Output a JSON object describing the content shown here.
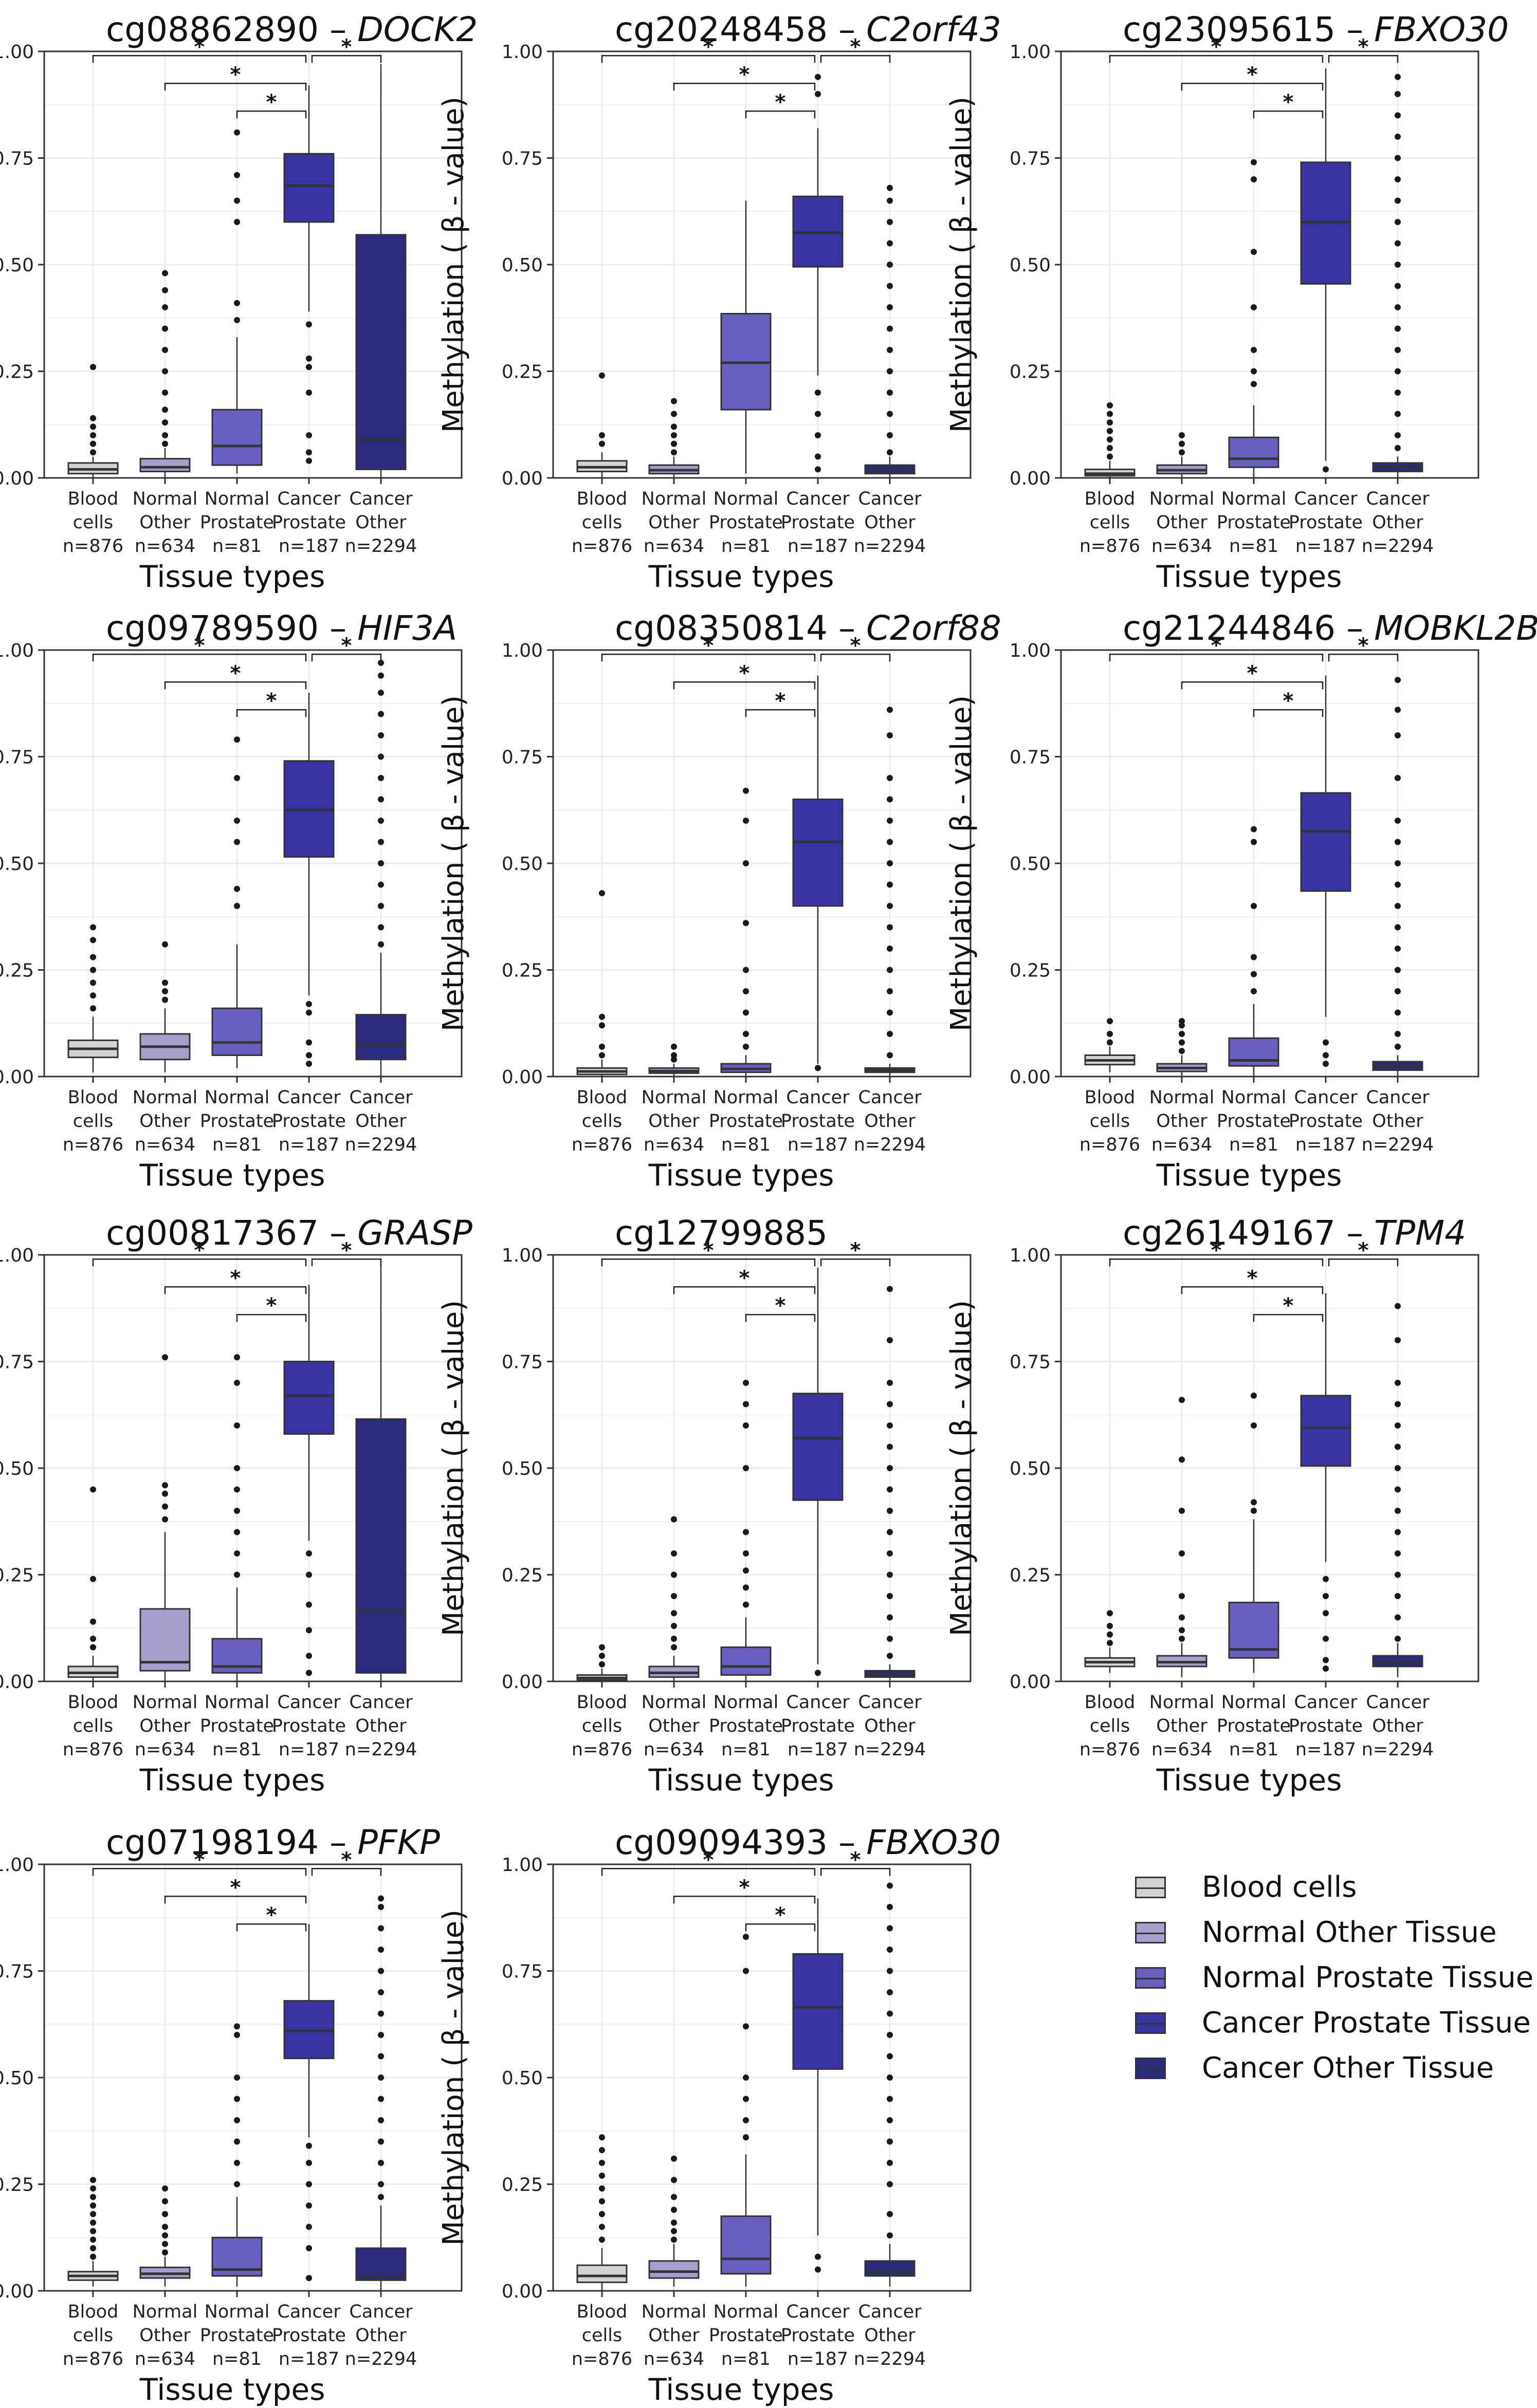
{
  "figure": {
    "ylabel": "Methylation ( β - value)",
    "xlabel": "Tissue types",
    "ylim": [
      0,
      1
    ],
    "yticks": [
      "0.00",
      "0.25",
      "0.50",
      "0.75",
      "1.00"
    ],
    "significance_marker": "*"
  },
  "groups": [
    {
      "label": "Blood cells",
      "line1": "Blood",
      "line2": "cells",
      "n": "n=876",
      "color": "#d3d3d3"
    },
    {
      "label": "Normal Other Tissue",
      "line1": "Normal",
      "line2": "Other",
      "n": "n=634",
      "color": "#a39ecb"
    },
    {
      "label": "Normal Prostate Tissue",
      "line1": "Normal",
      "line2": "Prostate",
      "n": "n=81",
      "color": "#6a5fbf"
    },
    {
      "label": "Cancer Prostate Tissue",
      "line1": "Cancer",
      "line2": "Prostate",
      "n": "n=187",
      "color": "#3a33a5"
    },
    {
      "label": "Cancer Other Tissue",
      "line1": "Cancer",
      "line2": "Other",
      "n": "n=2294",
      "color": "#2b2a7f"
    }
  ],
  "legend": {
    "items": [
      "Blood cells",
      "Normal Other Tissue",
      "Normal Prostate Tissue",
      "Cancer Prostate Tissue",
      "Cancer Other Tissue"
    ]
  },
  "chart_data": [
    {
      "type": "box",
      "title": "cg08862890",
      "gene": "DOCK2",
      "boxes": [
        {
          "min": 0,
          "q1": 0.01,
          "median": 0.02,
          "q3": 0.035,
          "max": 0.05,
          "outliers": [
            0.06,
            0.08,
            0.1,
            0.12,
            0.14,
            0.26
          ]
        },
        {
          "min": 0,
          "q1": 0.015,
          "median": 0.025,
          "q3": 0.045,
          "max": 0.07,
          "outliers": [
            0.08,
            0.1,
            0.13,
            0.16,
            0.2,
            0.25,
            0.3,
            0.35,
            0.4,
            0.44,
            0.48
          ]
        },
        {
          "min": 0.01,
          "q1": 0.03,
          "median": 0.075,
          "q3": 0.16,
          "max": 0.33,
          "outliers": [
            0.37,
            0.41,
            0.6,
            0.65,
            0.71,
            0.81
          ]
        },
        {
          "min": 0.39,
          "q1": 0.6,
          "median": 0.685,
          "q3": 0.76,
          "max": 0.92,
          "outliers": [
            0.36,
            0.28,
            0.26,
            0.2,
            0.1,
            0.06,
            0.04
          ]
        },
        {
          "min": 0,
          "q1": 0.02,
          "median": 0.09,
          "q3": 0.57,
          "max": 0.97,
          "outliers": []
        }
      ]
    },
    {
      "type": "box",
      "title": "cg20248458",
      "gene": "C2orf43",
      "boxes": [
        {
          "min": 0,
          "q1": 0.015,
          "median": 0.025,
          "q3": 0.04,
          "max": 0.06,
          "outliers": [
            0.08,
            0.1,
            0.24
          ]
        },
        {
          "min": 0,
          "q1": 0.01,
          "median": 0.018,
          "q3": 0.03,
          "max": 0.05,
          "outliers": [
            0.06,
            0.08,
            0.1,
            0.12,
            0.15,
            0.18
          ]
        },
        {
          "min": 0.01,
          "q1": 0.16,
          "median": 0.27,
          "q3": 0.385,
          "max": 0.65,
          "outliers": []
        },
        {
          "min": 0.24,
          "q1": 0.495,
          "median": 0.575,
          "q3": 0.66,
          "max": 0.82,
          "outliers": [
            0.9,
            0.94,
            0.2,
            0.15,
            0.1,
            0.05,
            0.02
          ]
        },
        {
          "min": 0,
          "q1": 0.01,
          "median": 0.018,
          "q3": 0.03,
          "max": 0.05,
          "outliers": [
            0.06,
            0.1,
            0.15,
            0.2,
            0.25,
            0.3,
            0.35,
            0.4,
            0.45,
            0.5,
            0.55,
            0.6,
            0.65,
            0.68
          ]
        }
      ]
    },
    {
      "type": "box",
      "title": "cg23095615",
      "gene": "FBXO30",
      "boxes": [
        {
          "min": 0,
          "q1": 0.005,
          "median": 0.01,
          "q3": 0.02,
          "max": 0.04,
          "outliers": [
            0.05,
            0.07,
            0.09,
            0.11,
            0.13,
            0.15,
            0.17
          ]
        },
        {
          "min": 0,
          "q1": 0.01,
          "median": 0.018,
          "q3": 0.03,
          "max": 0.05,
          "outliers": [
            0.06,
            0.08,
            0.1
          ]
        },
        {
          "min": 0,
          "q1": 0.025,
          "median": 0.045,
          "q3": 0.095,
          "max": 0.17,
          "outliers": [
            0.22,
            0.25,
            0.3,
            0.4,
            0.53,
            0.7,
            0.74
          ]
        },
        {
          "min": 0.04,
          "q1": 0.455,
          "median": 0.6,
          "q3": 0.74,
          "max": 0.96,
          "outliers": [
            0.02
          ]
        },
        {
          "min": 0,
          "q1": 0.015,
          "median": 0.025,
          "q3": 0.035,
          "max": 0.05,
          "outliers": [
            0.07,
            0.1,
            0.15,
            0.2,
            0.25,
            0.3,
            0.35,
            0.4,
            0.45,
            0.5,
            0.55,
            0.6,
            0.65,
            0.7,
            0.75,
            0.8,
            0.85,
            0.9,
            0.94
          ]
        }
      ]
    },
    {
      "type": "box",
      "title": "cg09789590",
      "gene": "HIF3A",
      "boxes": [
        {
          "min": 0.01,
          "q1": 0.045,
          "median": 0.065,
          "q3": 0.085,
          "max": 0.14,
          "outliers": [
            0.16,
            0.19,
            0.22,
            0.25,
            0.28,
            0.32,
            0.35
          ]
        },
        {
          "min": 0.01,
          "q1": 0.04,
          "median": 0.07,
          "q3": 0.1,
          "max": 0.16,
          "outliers": [
            0.18,
            0.2,
            0.22,
            0.31
          ]
        },
        {
          "min": 0.02,
          "q1": 0.05,
          "median": 0.08,
          "q3": 0.16,
          "max": 0.31,
          "outliers": [
            0.4,
            0.44,
            0.55,
            0.6,
            0.7,
            0.79
          ]
        },
        {
          "min": 0.19,
          "q1": 0.515,
          "median": 0.625,
          "q3": 0.74,
          "max": 0.9,
          "outliers": [
            0.17,
            0.15,
            0.08,
            0.05,
            0.03
          ]
        },
        {
          "min": 0,
          "q1": 0.04,
          "median": 0.075,
          "q3": 0.145,
          "max": 0.29,
          "outliers": [
            0.31,
            0.35,
            0.4,
            0.45,
            0.5,
            0.55,
            0.6,
            0.65,
            0.7,
            0.75,
            0.8,
            0.85,
            0.9,
            0.94,
            0.97
          ]
        }
      ]
    },
    {
      "type": "box",
      "title": "cg08350814",
      "gene": "C2orf88",
      "boxes": [
        {
          "min": 0,
          "q1": 0.005,
          "median": 0.012,
          "q3": 0.02,
          "max": 0.04,
          "outliers": [
            0.05,
            0.07,
            0.12,
            0.14,
            0.43
          ]
        },
        {
          "min": 0,
          "q1": 0.008,
          "median": 0.013,
          "q3": 0.02,
          "max": 0.03,
          "outliers": [
            0.04,
            0.05,
            0.07
          ]
        },
        {
          "min": 0,
          "q1": 0.01,
          "median": 0.018,
          "q3": 0.03,
          "max": 0.05,
          "outliers": [
            0.07,
            0.1,
            0.15,
            0.2,
            0.25,
            0.36,
            0.5,
            0.6,
            0.67
          ]
        },
        {
          "min": 0.03,
          "q1": 0.4,
          "median": 0.55,
          "q3": 0.65,
          "max": 0.94,
          "outliers": [
            0.02
          ]
        },
        {
          "min": 0,
          "q1": 0.01,
          "median": 0.015,
          "q3": 0.02,
          "max": 0.03,
          "outliers": [
            0.05,
            0.1,
            0.15,
            0.2,
            0.25,
            0.3,
            0.35,
            0.4,
            0.45,
            0.5,
            0.55,
            0.6,
            0.65,
            0.7,
            0.8,
            0.86
          ]
        }
      ]
    },
    {
      "type": "box",
      "title": "cg21244846",
      "gene": "MOBKL2B",
      "boxes": [
        {
          "min": 0.01,
          "q1": 0.028,
          "median": 0.038,
          "q3": 0.05,
          "max": 0.07,
          "outliers": [
            0.08,
            0.1,
            0.13
          ]
        },
        {
          "min": 0,
          "q1": 0.012,
          "median": 0.02,
          "q3": 0.03,
          "max": 0.05,
          "outliers": [
            0.06,
            0.08,
            0.1,
            0.12,
            0.13
          ]
        },
        {
          "min": 0,
          "q1": 0.025,
          "median": 0.038,
          "q3": 0.09,
          "max": 0.17,
          "outliers": [
            0.2,
            0.24,
            0.28,
            0.4,
            0.55,
            0.58
          ]
        },
        {
          "min": 0.14,
          "q1": 0.435,
          "median": 0.575,
          "q3": 0.665,
          "max": 0.94,
          "outliers": [
            0.08,
            0.05,
            0.03
          ]
        },
        {
          "min": 0,
          "q1": 0.015,
          "median": 0.025,
          "q3": 0.035,
          "max": 0.05,
          "outliers": [
            0.07,
            0.1,
            0.15,
            0.2,
            0.25,
            0.3,
            0.35,
            0.4,
            0.45,
            0.5,
            0.55,
            0.6,
            0.7,
            0.8,
            0.86,
            0.93
          ]
        }
      ]
    },
    {
      "type": "box",
      "title": "cg00817367",
      "gene": "GRASP",
      "boxes": [
        {
          "min": 0,
          "q1": 0.01,
          "median": 0.02,
          "q3": 0.035,
          "max": 0.06,
          "outliers": [
            0.08,
            0.1,
            0.14,
            0.24,
            0.45
          ]
        },
        {
          "min": 0,
          "q1": 0.025,
          "median": 0.045,
          "q3": 0.17,
          "max": 0.35,
          "outliers": [
            0.38,
            0.41,
            0.44,
            0.46,
            0.76
          ]
        },
        {
          "min": 0,
          "q1": 0.02,
          "median": 0.035,
          "q3": 0.1,
          "max": 0.22,
          "outliers": [
            0.25,
            0.3,
            0.35,
            0.4,
            0.45,
            0.5,
            0.6,
            0.7,
            0.76
          ]
        },
        {
          "min": 0.33,
          "q1": 0.58,
          "median": 0.67,
          "q3": 0.75,
          "max": 0.93,
          "outliers": [
            0.3,
            0.25,
            0.18,
            0.12,
            0.06,
            0.02
          ]
        },
        {
          "min": 0,
          "q1": 0.02,
          "median": 0.165,
          "q3": 0.615,
          "max": 0.98,
          "outliers": []
        }
      ]
    },
    {
      "type": "box",
      "title": "cg12799885",
      "gene": "",
      "boxes": [
        {
          "min": 0,
          "q1": 0.003,
          "median": 0.008,
          "q3": 0.015,
          "max": 0.03,
          "outliers": [
            0.04,
            0.06,
            0.08
          ]
        },
        {
          "min": 0,
          "q1": 0.01,
          "median": 0.02,
          "q3": 0.035,
          "max": 0.06,
          "outliers": [
            0.08,
            0.1,
            0.13,
            0.16,
            0.2,
            0.25,
            0.3,
            0.38
          ]
        },
        {
          "min": 0,
          "q1": 0.015,
          "median": 0.035,
          "q3": 0.08,
          "max": 0.15,
          "outliers": [
            0.18,
            0.22,
            0.26,
            0.3,
            0.35,
            0.5,
            0.6,
            0.65,
            0.7
          ]
        },
        {
          "min": 0.04,
          "q1": 0.425,
          "median": 0.57,
          "q3": 0.675,
          "max": 0.97,
          "outliers": [
            0.02
          ]
        },
        {
          "min": 0,
          "q1": 0.01,
          "median": 0.015,
          "q3": 0.025,
          "max": 0.04,
          "outliers": [
            0.06,
            0.1,
            0.15,
            0.2,
            0.25,
            0.3,
            0.35,
            0.4,
            0.45,
            0.5,
            0.55,
            0.6,
            0.65,
            0.7,
            0.8,
            0.92
          ]
        }
      ]
    },
    {
      "type": "box",
      "title": "cg26149167",
      "gene": "TPM4",
      "boxes": [
        {
          "min": 0.02,
          "q1": 0.035,
          "median": 0.045,
          "q3": 0.055,
          "max": 0.08,
          "outliers": [
            0.09,
            0.11,
            0.13,
            0.16
          ]
        },
        {
          "min": 0.01,
          "q1": 0.035,
          "median": 0.045,
          "q3": 0.06,
          "max": 0.09,
          "outliers": [
            0.1,
            0.12,
            0.15,
            0.2,
            0.3,
            0.4,
            0.52,
            0.66
          ]
        },
        {
          "min": 0.02,
          "q1": 0.055,
          "median": 0.075,
          "q3": 0.185,
          "max": 0.38,
          "outliers": [
            0.4,
            0.42,
            0.6,
            0.67
          ]
        },
        {
          "min": 0.28,
          "q1": 0.505,
          "median": 0.595,
          "q3": 0.67,
          "max": 0.91,
          "outliers": [
            0.24,
            0.2,
            0.16,
            0.1,
            0.05,
            0.03
          ]
        },
        {
          "min": 0.01,
          "q1": 0.035,
          "median": 0.045,
          "q3": 0.06,
          "max": 0.09,
          "outliers": [
            0.1,
            0.15,
            0.2,
            0.25,
            0.3,
            0.35,
            0.4,
            0.45,
            0.5,
            0.55,
            0.6,
            0.65,
            0.7,
            0.8,
            0.88
          ]
        }
      ]
    },
    {
      "type": "box",
      "title": "cg07198194",
      "gene": "PFKP",
      "boxes": [
        {
          "min": 0.01,
          "q1": 0.025,
          "median": 0.035,
          "q3": 0.045,
          "max": 0.07,
          "outliers": [
            0.08,
            0.1,
            0.12,
            0.14,
            0.16,
            0.18,
            0.2,
            0.22,
            0.24,
            0.26
          ]
        },
        {
          "min": 0.01,
          "q1": 0.03,
          "median": 0.04,
          "q3": 0.055,
          "max": 0.08,
          "outliers": [
            0.09,
            0.11,
            0.13,
            0.15,
            0.18,
            0.21,
            0.24
          ]
        },
        {
          "min": 0.01,
          "q1": 0.035,
          "median": 0.05,
          "q3": 0.125,
          "max": 0.22,
          "outliers": [
            0.25,
            0.3,
            0.35,
            0.4,
            0.45,
            0.5,
            0.6,
            0.62
          ]
        },
        {
          "min": 0.36,
          "q1": 0.545,
          "median": 0.61,
          "q3": 0.68,
          "max": 0.86,
          "outliers": [
            0.34,
            0.3,
            0.25,
            0.2,
            0.15,
            0.1,
            0.03
          ]
        },
        {
          "min": 0,
          "q1": 0.025,
          "median": 0.035,
          "q3": 0.1,
          "max": 0.2,
          "outliers": [
            0.22,
            0.25,
            0.3,
            0.35,
            0.4,
            0.45,
            0.5,
            0.55,
            0.6,
            0.65,
            0.7,
            0.75,
            0.8,
            0.85,
            0.9,
            0.92
          ]
        }
      ]
    },
    {
      "type": "box",
      "title": "cg09094393",
      "gene": "FBXO30",
      "boxes": [
        {
          "min": 0,
          "q1": 0.02,
          "median": 0.035,
          "q3": 0.06,
          "max": 0.1,
          "outliers": [
            0.12,
            0.15,
            0.18,
            0.21,
            0.24,
            0.27,
            0.3,
            0.33,
            0.36
          ]
        },
        {
          "min": 0.01,
          "q1": 0.03,
          "median": 0.045,
          "q3": 0.07,
          "max": 0.11,
          "outliers": [
            0.12,
            0.14,
            0.16,
            0.19,
            0.22,
            0.26,
            0.31
          ]
        },
        {
          "min": 0.01,
          "q1": 0.04,
          "median": 0.075,
          "q3": 0.175,
          "max": 0.32,
          "outliers": [
            0.36,
            0.4,
            0.45,
            0.5,
            0.62,
            0.75,
            0.83
          ]
        },
        {
          "min": 0.13,
          "q1": 0.52,
          "median": 0.665,
          "q3": 0.79,
          "max": 0.92,
          "outliers": [
            0.08,
            0.05
          ]
        },
        {
          "min": 0.01,
          "q1": 0.035,
          "median": 0.045,
          "q3": 0.07,
          "max": 0.11,
          "outliers": [
            0.13,
            0.18,
            0.25,
            0.3,
            0.35,
            0.4,
            0.45,
            0.5,
            0.55,
            0.6,
            0.65,
            0.7,
            0.75,
            0.8,
            0.85,
            0.9,
            0.95
          ]
        }
      ]
    }
  ]
}
